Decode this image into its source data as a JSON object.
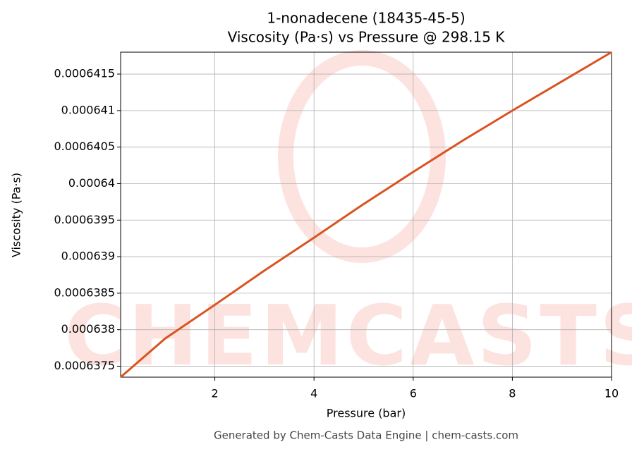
{
  "chart_data": {
    "type": "line",
    "title": "1-nonadecene (18435-45-5)",
    "subtitle": "Viscosity (Pa·s) vs Pressure @ 298.15 K",
    "xlabel": "Pressure (bar)",
    "ylabel": "Viscosity (Pa·s)",
    "footer": "Generated by Chem-Casts Data Engine | chem-casts.com",
    "watermark": "CHEMCASTS",
    "x": [
      0.1,
      1,
      2,
      3,
      4,
      5,
      6,
      7,
      8,
      9,
      10
    ],
    "series": [
      {
        "name": "Viscosity",
        "color": "#d95420",
        "values": [
          0.00063735,
          0.00063788,
          0.00063834,
          0.00063881,
          0.00063926,
          0.00063972,
          0.00064016,
          0.00064059,
          0.000641,
          0.0006414,
          0.0006418
        ]
      }
    ],
    "xlim": [
      0.1,
      10
    ],
    "ylim": [
      0.00063735,
      0.0006418
    ],
    "xticks": [
      2,
      4,
      6,
      8,
      10
    ],
    "yticks": [
      0.0006375,
      0.000638,
      0.0006385,
      0.000639,
      0.0006395,
      0.00064,
      0.0006405,
      0.000641,
      0.0006415
    ],
    "grid": true
  }
}
